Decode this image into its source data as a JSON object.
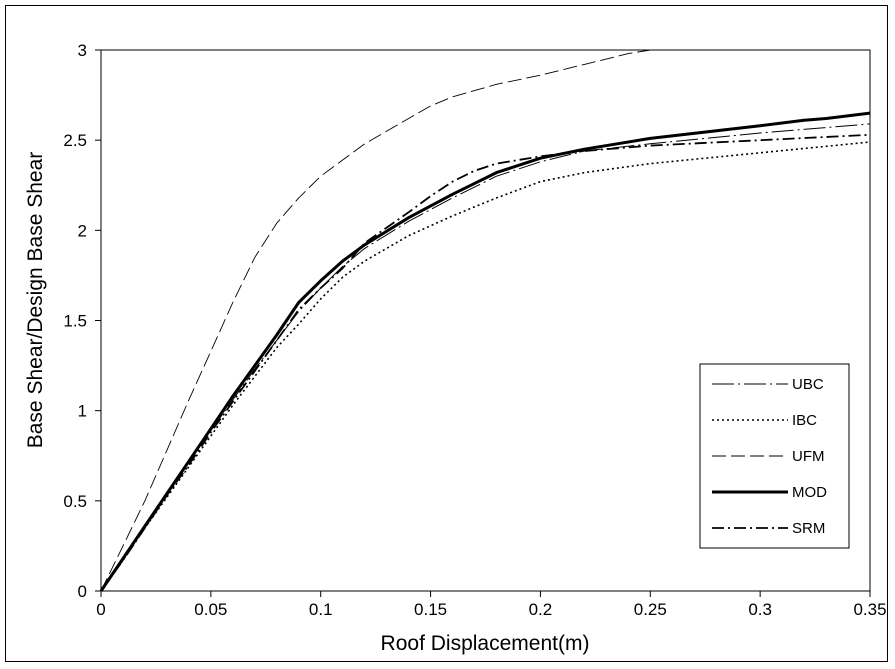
{
  "chart_data": {
    "type": "line",
    "title": "",
    "xlabel": "Roof Displacement(m)",
    "ylabel": "Base Shear/Design Base Shear",
    "xlim": [
      0,
      0.35
    ],
    "ylim": [
      0,
      3
    ],
    "x_ticks": [
      "0",
      "0.05",
      "0.1",
      "0.15",
      "0.2",
      "0.25",
      "0.3",
      "0.35"
    ],
    "y_ticks": [
      "0",
      "0.5",
      "1",
      "1.5",
      "2",
      "2.5",
      "3"
    ],
    "grid": false,
    "legend_position": "right",
    "series": [
      {
        "name": "UBC",
        "style": "longdash-thin",
        "points": [
          [
            0,
            0
          ],
          [
            0.01,
            0.18
          ],
          [
            0.02,
            0.36
          ],
          [
            0.03,
            0.54
          ],
          [
            0.04,
            0.72
          ],
          [
            0.05,
            0.89
          ],
          [
            0.06,
            1.06
          ],
          [
            0.07,
            1.23
          ],
          [
            0.08,
            1.39
          ],
          [
            0.09,
            1.55
          ],
          [
            0.1,
            1.68
          ],
          [
            0.11,
            1.8
          ],
          [
            0.12,
            1.9
          ],
          [
            0.14,
            2.05
          ],
          [
            0.16,
            2.18
          ],
          [
            0.18,
            2.3
          ],
          [
            0.2,
            2.38
          ],
          [
            0.22,
            2.44
          ],
          [
            0.25,
            2.48
          ],
          [
            0.3,
            2.54
          ],
          [
            0.35,
            2.59
          ]
        ]
      },
      {
        "name": "IBC",
        "style": "dotted",
        "points": [
          [
            0,
            0
          ],
          [
            0.01,
            0.17
          ],
          [
            0.02,
            0.35
          ],
          [
            0.03,
            0.52
          ],
          [
            0.04,
            0.69
          ],
          [
            0.05,
            0.86
          ],
          [
            0.06,
            1.03
          ],
          [
            0.07,
            1.19
          ],
          [
            0.08,
            1.35
          ],
          [
            0.09,
            1.48
          ],
          [
            0.1,
            1.62
          ],
          [
            0.11,
            1.74
          ],
          [
            0.12,
            1.83
          ],
          [
            0.14,
            1.97
          ],
          [
            0.16,
            2.08
          ],
          [
            0.18,
            2.18
          ],
          [
            0.2,
            2.27
          ],
          [
            0.22,
            2.32
          ],
          [
            0.25,
            2.37
          ],
          [
            0.3,
            2.43
          ],
          [
            0.35,
            2.49
          ]
        ]
      },
      {
        "name": "UFM",
        "style": "dash-thin",
        "points": [
          [
            0,
            0
          ],
          [
            0.01,
            0.25
          ],
          [
            0.02,
            0.5
          ],
          [
            0.03,
            0.78
          ],
          [
            0.04,
            1.06
          ],
          [
            0.05,
            1.33
          ],
          [
            0.06,
            1.6
          ],
          [
            0.07,
            1.85
          ],
          [
            0.08,
            2.04
          ],
          [
            0.09,
            2.18
          ],
          [
            0.1,
            2.3
          ],
          [
            0.12,
            2.48
          ],
          [
            0.14,
            2.62
          ],
          [
            0.15,
            2.69
          ],
          [
            0.16,
            2.74
          ],
          [
            0.18,
            2.81
          ],
          [
            0.2,
            2.86
          ],
          [
            0.22,
            2.92
          ],
          [
            0.24,
            2.98
          ],
          [
            0.25,
            3.0
          ]
        ]
      },
      {
        "name": "MOD",
        "style": "solid-thick",
        "points": [
          [
            0,
            0
          ],
          [
            0.01,
            0.18
          ],
          [
            0.02,
            0.36
          ],
          [
            0.03,
            0.54
          ],
          [
            0.04,
            0.72
          ],
          [
            0.05,
            0.9
          ],
          [
            0.06,
            1.08
          ],
          [
            0.07,
            1.25
          ],
          [
            0.08,
            1.42
          ],
          [
            0.09,
            1.6
          ],
          [
            0.1,
            1.72
          ],
          [
            0.11,
            1.83
          ],
          [
            0.12,
            1.92
          ],
          [
            0.14,
            2.07
          ],
          [
            0.16,
            2.2
          ],
          [
            0.18,
            2.32
          ],
          [
            0.2,
            2.4
          ],
          [
            0.22,
            2.45
          ],
          [
            0.25,
            2.51
          ],
          [
            0.3,
            2.58
          ],
          [
            0.32,
            2.61
          ],
          [
            0.33,
            2.62
          ],
          [
            0.35,
            2.65
          ]
        ]
      },
      {
        "name": "SRM",
        "style": "dashdot",
        "points": [
          [
            0,
            0
          ],
          [
            0.01,
            0.17
          ],
          [
            0.02,
            0.35
          ],
          [
            0.03,
            0.53
          ],
          [
            0.04,
            0.7
          ],
          [
            0.05,
            0.88
          ],
          [
            0.06,
            1.05
          ],
          [
            0.07,
            1.22
          ],
          [
            0.08,
            1.39
          ],
          [
            0.09,
            1.56
          ],
          [
            0.1,
            1.68
          ],
          [
            0.11,
            1.79
          ],
          [
            0.12,
            1.93
          ],
          [
            0.14,
            2.1
          ],
          [
            0.15,
            2.19
          ],
          [
            0.16,
            2.27
          ],
          [
            0.17,
            2.33
          ],
          [
            0.18,
            2.37
          ],
          [
            0.2,
            2.41
          ],
          [
            0.22,
            2.44
          ],
          [
            0.25,
            2.47
          ],
          [
            0.3,
            2.5
          ],
          [
            0.35,
            2.53
          ]
        ]
      }
    ]
  }
}
